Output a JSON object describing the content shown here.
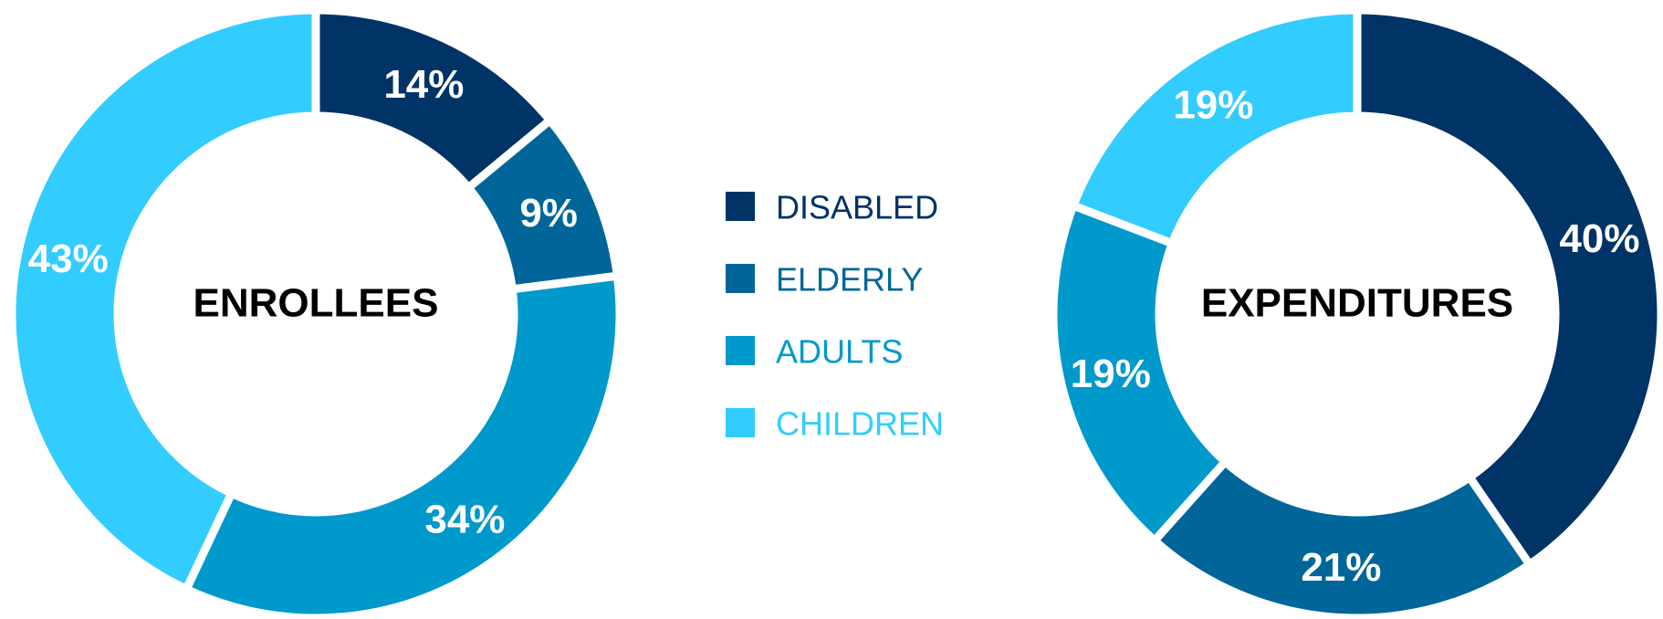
{
  "chart_data": [
    {
      "type": "pie",
      "title": "ENROLLEES",
      "categories": [
        "DISABLED",
        "ELDERLY",
        "ADULTS",
        "CHILDREN"
      ],
      "values": [
        14,
        9,
        34,
        43
      ],
      "labels": [
        "14%",
        "9%",
        "34%",
        "43%"
      ],
      "colors": [
        "#003366",
        "#006699",
        "#0099CC",
        "#33CCFF"
      ],
      "donut": true
    },
    {
      "type": "pie",
      "title": "EXPENDITURES",
      "categories": [
        "DISABLED",
        "ELDERLY",
        "ADULTS",
        "CHILDREN"
      ],
      "values": [
        40,
        21,
        19,
        19
      ],
      "labels": [
        "40%",
        "21%",
        "19%",
        "19%"
      ],
      "colors": [
        "#003366",
        "#006699",
        "#0099CC",
        "#33CCFF"
      ],
      "donut": true
    }
  ],
  "legend": {
    "placement": "center",
    "items": [
      {
        "label": "DISABLED",
        "color": "#003366"
      },
      {
        "label": "ELDERLY",
        "color": "#006699"
      },
      {
        "label": "ADULTS",
        "color": "#0099CC"
      },
      {
        "label": "CHILDREN",
        "color": "#33CCFF"
      }
    ]
  }
}
